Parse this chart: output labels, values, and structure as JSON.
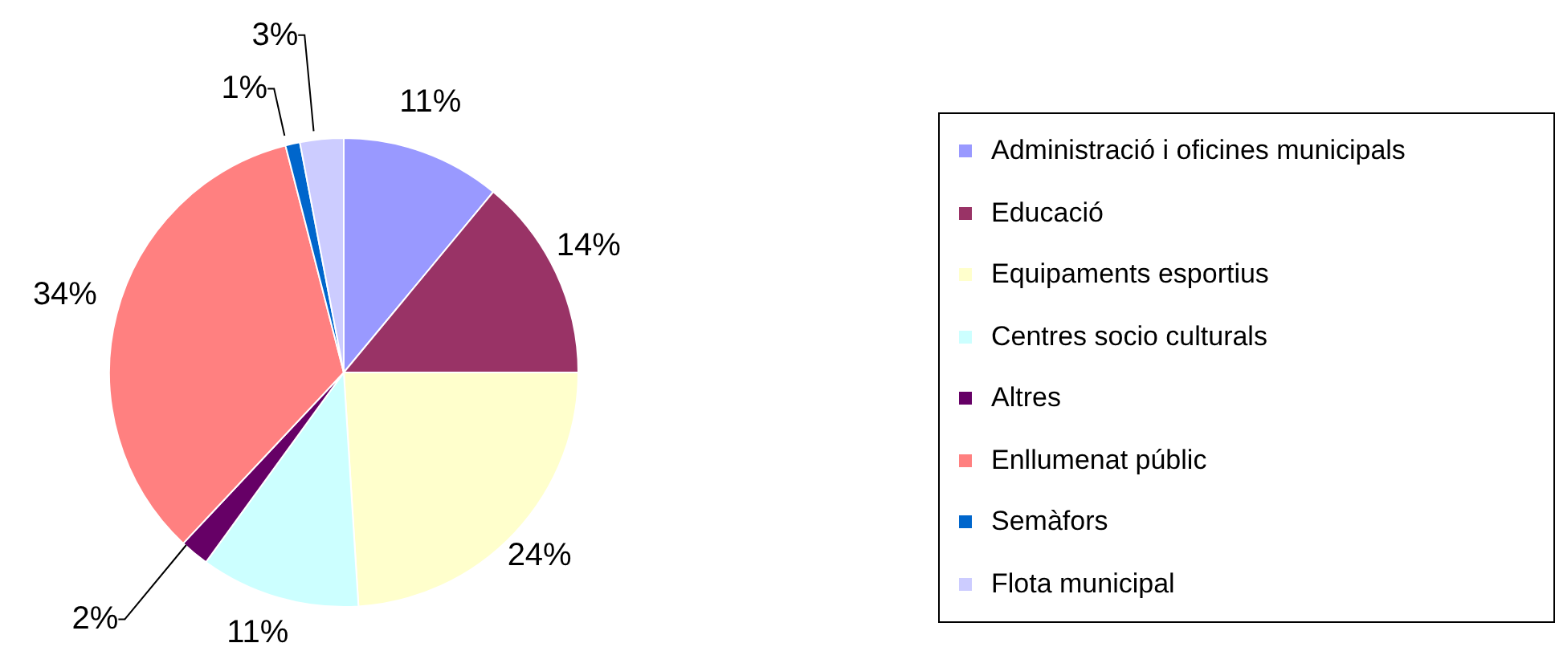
{
  "chart_data": {
    "type": "pie",
    "categories": [
      "Administració i oficines municipals",
      "Educació",
      "Equipaments esportius",
      "Centres socio culturals",
      "Altres",
      "Enllumenat públic",
      "Semàfors",
      "Flota municipal"
    ],
    "values": [
      11,
      14,
      24,
      11,
      2,
      34,
      1,
      3
    ],
    "colors": [
      "#9999ff",
      "#993366",
      "#ffffcc",
      "#ccffff",
      "#660066",
      "#ff8080",
      "#0066cc",
      "#ccccff"
    ],
    "value_labels": [
      "11%",
      "14%",
      "24%",
      "11%",
      "2%",
      "34%",
      "1%",
      "3%"
    ],
    "legend": "right"
  }
}
